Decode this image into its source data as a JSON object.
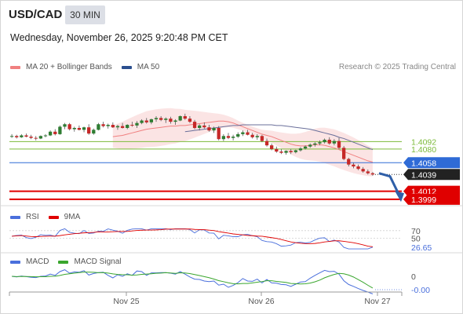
{
  "header": {
    "symbol": "USD/CAD",
    "timeframe": "30 MIN",
    "datetime": "Wednesday, November 26, 2025 9:20:48 PM CET"
  },
  "legend_main": [
    {
      "label": "MA 20 + Bollinger Bands",
      "color": "#f08080"
    },
    {
      "label": "MA 50",
      "color": "#2b4f8f"
    }
  ],
  "credit": "Research © 2025 Trading Central",
  "legend_rsi": [
    {
      "label": "RSI",
      "color": "#4a6fdc"
    },
    {
      "label": "9MA",
      "color": "#e00000"
    }
  ],
  "legend_macd": [
    {
      "label": "MACD",
      "color": "#4a6fdc"
    },
    {
      "label": "MACD Signal",
      "color": "#3aa62e"
    }
  ],
  "chart_data": {
    "type": "candlestick",
    "price_axis": {
      "min": 1.3985,
      "max": 1.42
    },
    "levels": [
      {
        "value": 1.4092,
        "label": "1.4092",
        "kind": "resistance",
        "color": "#7cba3a"
      },
      {
        "value": 1.408,
        "label": "1.4080",
        "kind": "resistance",
        "color": "#7cba3a"
      },
      {
        "value": 1.4058,
        "label": "1.4058",
        "kind": "pivot",
        "color": "#2f6bd6"
      },
      {
        "value": 1.4039,
        "label": "1.4039",
        "kind": "last",
        "color": "#222222"
      },
      {
        "value": 1.4012,
        "label": "1.4012",
        "kind": "support",
        "color": "#e00000"
      },
      {
        "value": 1.3999,
        "label": "1.3999",
        "kind": "support",
        "color": "#e00000"
      }
    ],
    "candles": [
      [
        1.41,
        1.4104,
        1.4098,
        1.4101
      ],
      [
        1.4101,
        1.4103,
        1.4097,
        1.4099
      ],
      [
        1.4099,
        1.4104,
        1.4098,
        1.4102
      ],
      [
        1.4102,
        1.4105,
        1.4099,
        1.41
      ],
      [
        1.41,
        1.4103,
        1.4096,
        1.4098
      ],
      [
        1.4098,
        1.4101,
        1.4094,
        1.4097
      ],
      [
        1.4097,
        1.4102,
        1.4096,
        1.4101
      ],
      [
        1.4101,
        1.4104,
        1.4099,
        1.4102
      ],
      [
        1.4102,
        1.411,
        1.4101,
        1.4108
      ],
      [
        1.4108,
        1.4112,
        1.4102,
        1.4104
      ],
      [
        1.4104,
        1.4118,
        1.4103,
        1.4116
      ],
      [
        1.4116,
        1.4122,
        1.4112,
        1.412
      ],
      [
        1.412,
        1.4122,
        1.411,
        1.4112
      ],
      [
        1.4112,
        1.4116,
        1.4108,
        1.4114
      ],
      [
        1.4114,
        1.4118,
        1.411,
        1.4111
      ],
      [
        1.4111,
        1.4116,
        1.4107,
        1.4115
      ],
      [
        1.4115,
        1.412,
        1.4103,
        1.4105
      ],
      [
        1.4105,
        1.4113,
        1.4103,
        1.4111
      ],
      [
        1.4111,
        1.4122,
        1.411,
        1.412
      ],
      [
        1.412,
        1.4124,
        1.4115,
        1.4117
      ],
      [
        1.4117,
        1.4121,
        1.4113,
        1.4119
      ],
      [
        1.4119,
        1.4123,
        1.4114,
        1.4115
      ],
      [
        1.4115,
        1.4119,
        1.4111,
        1.4117
      ],
      [
        1.4117,
        1.4122,
        1.4113,
        1.4114
      ],
      [
        1.4114,
        1.412,
        1.4112,
        1.4119
      ],
      [
        1.4119,
        1.4124,
        1.4116,
        1.4118
      ],
      [
        1.4118,
        1.4125,
        1.4114,
        1.4122
      ],
      [
        1.4122,
        1.4128,
        1.412,
        1.4126
      ],
      [
        1.4126,
        1.413,
        1.4121,
        1.4123
      ],
      [
        1.4123,
        1.4129,
        1.412,
        1.4128
      ],
      [
        1.4128,
        1.4133,
        1.4124,
        1.413
      ],
      [
        1.413,
        1.4133,
        1.4125,
        1.4127
      ],
      [
        1.4127,
        1.4131,
        1.4122,
        1.4129
      ],
      [
        1.4129,
        1.4132,
        1.4121,
        1.4124
      ],
      [
        1.4124,
        1.4128,
        1.4119,
        1.4126
      ],
      [
        1.4126,
        1.4134,
        1.4125,
        1.4133
      ],
      [
        1.4133,
        1.4137,
        1.4127,
        1.4129
      ],
      [
        1.4129,
        1.4133,
        1.4122,
        1.4124
      ],
      [
        1.4124,
        1.4127,
        1.4112,
        1.4114
      ],
      [
        1.4114,
        1.412,
        1.411,
        1.4118
      ],
      [
        1.4118,
        1.4123,
        1.4113,
        1.4115
      ],
      [
        1.4115,
        1.4119,
        1.4108,
        1.411
      ],
      [
        1.411,
        1.4116,
        1.4106,
        1.4114
      ],
      [
        1.4114,
        1.4117,
        1.4094,
        1.4096
      ],
      [
        1.4096,
        1.4104,
        1.4093,
        1.4101
      ],
      [
        1.4101,
        1.4106,
        1.4096,
        1.4098
      ],
      [
        1.4098,
        1.4103,
        1.4094,
        1.41
      ],
      [
        1.41,
        1.4107,
        1.4098,
        1.4104
      ],
      [
        1.4104,
        1.411,
        1.4101,
        1.4107
      ],
      [
        1.4107,
        1.4111,
        1.4102,
        1.4103
      ],
      [
        1.4103,
        1.4106,
        1.4097,
        1.4099
      ],
      [
        1.4099,
        1.4104,
        1.4095,
        1.4101
      ],
      [
        1.4101,
        1.4103,
        1.4091,
        1.4093
      ],
      [
        1.4093,
        1.4097,
        1.4084,
        1.4086
      ],
      [
        1.4086,
        1.4089,
        1.4078,
        1.408
      ],
      [
        1.408,
        1.4084,
        1.4074,
        1.4076
      ],
      [
        1.4076,
        1.408,
        1.4072,
        1.4074
      ],
      [
        1.4074,
        1.4078,
        1.4071,
        1.4077
      ],
      [
        1.4077,
        1.408,
        1.4072,
        1.4075
      ],
      [
        1.4075,
        1.4079,
        1.4073,
        1.4078
      ],
      [
        1.4078,
        1.4083,
        1.4076,
        1.4081
      ],
      [
        1.4081,
        1.4086,
        1.4079,
        1.4084
      ],
      [
        1.4084,
        1.4089,
        1.4082,
        1.4087
      ],
      [
        1.4087,
        1.4091,
        1.4084,
        1.4089
      ],
      [
        1.4089,
        1.4094,
        1.4086,
        1.4091
      ],
      [
        1.4091,
        1.4097,
        1.4089,
        1.4095
      ],
      [
        1.4095,
        1.4099,
        1.4087,
        1.4089
      ],
      [
        1.4089,
        1.4096,
        1.4086,
        1.4093
      ],
      [
        1.4093,
        1.4098,
        1.408,
        1.4082
      ],
      [
        1.4082,
        1.4085,
        1.4062,
        1.4064
      ],
      [
        1.4064,
        1.4066,
        1.4052,
        1.4055
      ],
      [
        1.4055,
        1.4058,
        1.4049,
        1.4052
      ],
      [
        1.4052,
        1.4055,
        1.4046,
        1.4048
      ],
      [
        1.4048,
        1.4051,
        1.4042,
        1.4044
      ],
      [
        1.4044,
        1.4047,
        1.4039,
        1.4041
      ],
      [
        1.4041,
        1.4043,
        1.4037,
        1.4039
      ]
    ],
    "ma20": [
      1.41,
      1.4101,
      1.4102,
      1.4104,
      1.4106,
      1.4108,
      1.411,
      1.4112,
      1.4113,
      1.4114,
      1.4115,
      1.4116,
      1.4117,
      1.4117,
      1.4118,
      1.4118,
      1.4119,
      1.412,
      1.4121,
      1.4122,
      1.4123,
      1.4124,
      1.4125,
      1.4125,
      1.4124,
      1.4122,
      1.4119,
      1.4116,
      1.4113,
      1.411,
      1.4107,
      1.4104,
      1.4102,
      1.41,
      1.4097,
      1.4094,
      1.4091,
      1.4088,
      1.4086,
      1.4085,
      1.4085,
      1.4086,
      1.4087,
      1.4087,
      1.4086,
      1.4084,
      1.4082,
      1.4079,
      1.4076,
      1.4073,
      1.407,
      1.4067,
      1.4064,
      1.4061,
      1.4059
    ],
    "ma50": [
      1.4108,
      1.4109,
      1.411,
      1.4111,
      1.4112,
      1.4113,
      1.4114,
      1.4115,
      1.4116,
      1.4117,
      1.4118,
      1.4118,
      1.4119,
      1.4119,
      1.4119,
      1.4119,
      1.4119,
      1.4119,
      1.4119,
      1.4118,
      1.4118,
      1.4117,
      1.4116,
      1.4115,
      1.4114,
      1.4113,
      1.4112,
      1.411,
      1.4108,
      1.4106,
      1.4104,
      1.4102,
      1.4099,
      1.4097,
      1.4094,
      1.4091,
      1.4088,
      1.4085,
      1.4082,
      1.4079
    ],
    "rsi": {
      "levels": [
        70,
        50
      ],
      "last_label": "26.65",
      "last": 26.65,
      "min": 20,
      "max": 80
    },
    "macd": {
      "zero_label": "0",
      "last_label": "-0.00"
    },
    "x_labels": [
      "Nov 25",
      "Nov 26",
      "Nov 27"
    ]
  }
}
